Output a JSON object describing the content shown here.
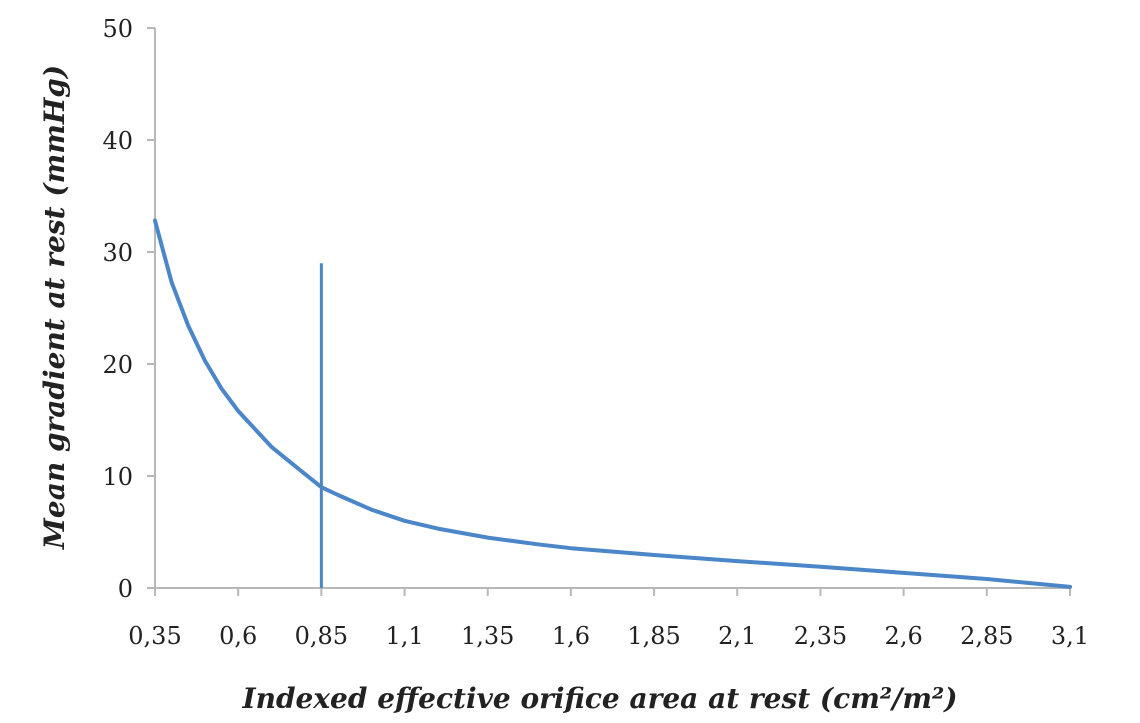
{
  "chart_data": {
    "type": "line",
    "title": "",
    "xlabel": "Indexed effective orifice area at rest (cm²/m²)",
    "ylabel": "Mean gradient at rest (mmHg)",
    "x_ticks": [
      "0,35",
      "0,6",
      "0,85",
      "1,1",
      "1,35",
      "1,6",
      "1,85",
      "2,1",
      "2,35",
      "2,6",
      "2,85",
      "3,1"
    ],
    "x_tick_values": [
      0.35,
      0.6,
      0.85,
      1.1,
      1.35,
      1.6,
      1.85,
      2.1,
      2.35,
      2.6,
      2.85,
      3.1
    ],
    "y_ticks": [
      "0",
      "10",
      "20",
      "30",
      "40",
      "50"
    ],
    "y_tick_values": [
      0,
      10,
      20,
      30,
      40,
      50
    ],
    "xlim": [
      0.35,
      3.1
    ],
    "ylim": [
      0,
      50
    ],
    "grid": false,
    "series": [
      {
        "color": "#4a86c8",
        "x": [
          0.35,
          0.4,
          0.45,
          0.5,
          0.55,
          0.6,
          0.7,
          0.8,
          0.85,
          0.9,
          1.0,
          1.1,
          1.2,
          1.35,
          1.5,
          1.6,
          1.85,
          2.1,
          2.35,
          2.6,
          2.85,
          3.1
        ],
        "y": [
          32.8,
          27.3,
          23.4,
          20.3,
          17.8,
          15.8,
          12.6,
          10.2,
          9.0,
          8.3,
          7.0,
          6.0,
          5.3,
          4.5,
          3.9,
          3.55,
          2.95,
          2.4,
          1.9,
          1.35,
          0.8,
          0.1
        ]
      }
    ],
    "reference_line": {
      "x": 0.85,
      "y_from": 0,
      "y_to": 29,
      "color": "#4a86c8"
    }
  }
}
